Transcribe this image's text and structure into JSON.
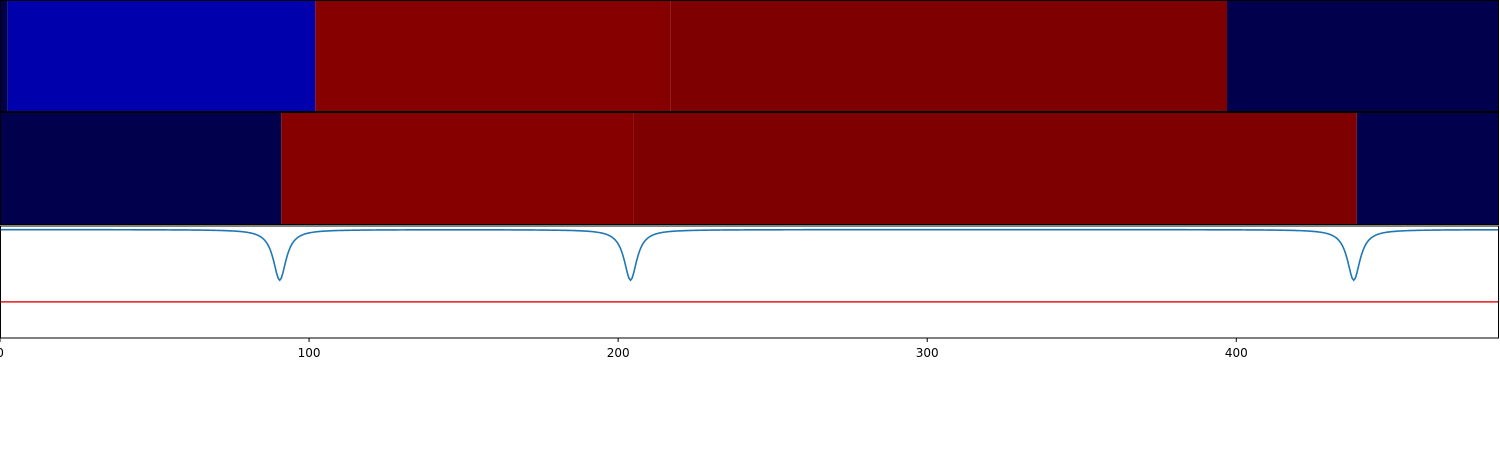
{
  "chart_data": {
    "type": "heatmap",
    "title": "",
    "xlabel": "",
    "ylabel": "",
    "xlim": [
      0,
      485
    ],
    "xticks": [
      0,
      100,
      200,
      300,
      400
    ],
    "colormap": "seismic",
    "grid": false,
    "legend": "none",
    "heatmap_rows": [
      {
        "segments": [
          {
            "x0": 0,
            "x1": 2.5,
            "color": "#00004c"
          },
          {
            "x0": 2.5,
            "x1": 102,
            "color": "#0000ac"
          },
          {
            "x0": 102,
            "x1": 217,
            "color": "#860000"
          },
          {
            "x0": 217,
            "x1": 397,
            "color": "#7e0000"
          },
          {
            "x0": 397,
            "x1": 485,
            "color": "#00004c"
          }
        ]
      },
      {
        "segments": [
          {
            "x0": 0,
            "x1": 91,
            "color": "#00004c"
          },
          {
            "x0": 91,
            "x1": 205,
            "color": "#860000"
          },
          {
            "x0": 205,
            "x1": 439,
            "color": "#7e0000"
          },
          {
            "x0": 439,
            "x1": 485,
            "color": "#00004c"
          }
        ]
      }
    ],
    "line_panel": {
      "ylim": [
        -1.5,
        0.05
      ],
      "threshold": {
        "value": -1.0,
        "color": "#e41a1c"
      },
      "series": {
        "color": "#1f77b4",
        "baseline": 0,
        "dips": [
          {
            "center": 90.5,
            "depth": -0.7,
            "width": 2.5
          },
          {
            "center": 204,
            "depth": -0.7,
            "width": 2.5
          },
          {
            "center": 438,
            "depth": -0.7,
            "width": 2.5
          }
        ]
      }
    }
  }
}
